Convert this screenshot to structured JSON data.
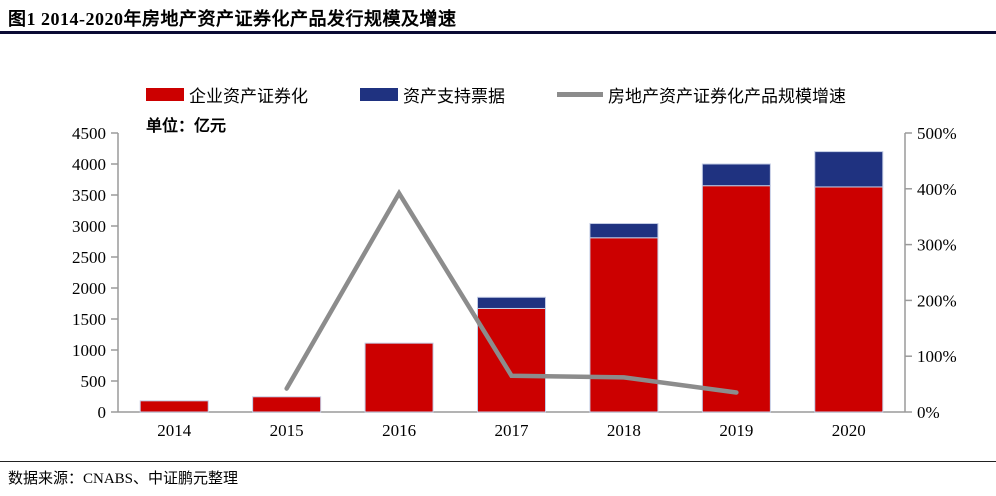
{
  "title": "图1 2014-2020年房地产资产证券化产品发行规模及增速",
  "unit_label": "单位：亿元",
  "source": "数据来源：CNABS、中证鹏元整理",
  "colors": {
    "bar_red": "#cc0000",
    "bar_navy": "#1f3280",
    "growth_line": "#8c8c8c",
    "axis": "#9a9a9a",
    "bar_edge": "#c3cce4",
    "title_rule": "#0b0b34"
  },
  "chart_data": {
    "type": "bar",
    "title": "图1 2014-2020年房地产资产证券化产品发行规模及增速",
    "categories": [
      "2014",
      "2015",
      "2016",
      "2017",
      "2018",
      "2019",
      "2020"
    ],
    "series": [
      {
        "name": "企业资产证券化",
        "type": "bar",
        "color": "#cc0000",
        "values": [
          180,
          245,
          1110,
          1670,
          2810,
          3650,
          3630
        ]
      },
      {
        "name": "资产支持票据",
        "type": "bar",
        "color": "#1f3280",
        "values": [
          0,
          0,
          0,
          180,
          230,
          350,
          570
        ]
      },
      {
        "name": "房地产资产证券化产品规模增速",
        "type": "line",
        "color": "#8c8c8c",
        "axis": "right",
        "values": [
          null,
          42,
          392,
          65,
          62,
          35,
          null
        ]
      }
    ],
    "left_axis": {
      "label": "单位：亿元",
      "min": 0,
      "max": 4500,
      "step": 500
    },
    "right_axis": {
      "min": 0,
      "max": 500,
      "step": 100,
      "suffix": "%"
    },
    "grid": false,
    "legend_position": "top"
  }
}
